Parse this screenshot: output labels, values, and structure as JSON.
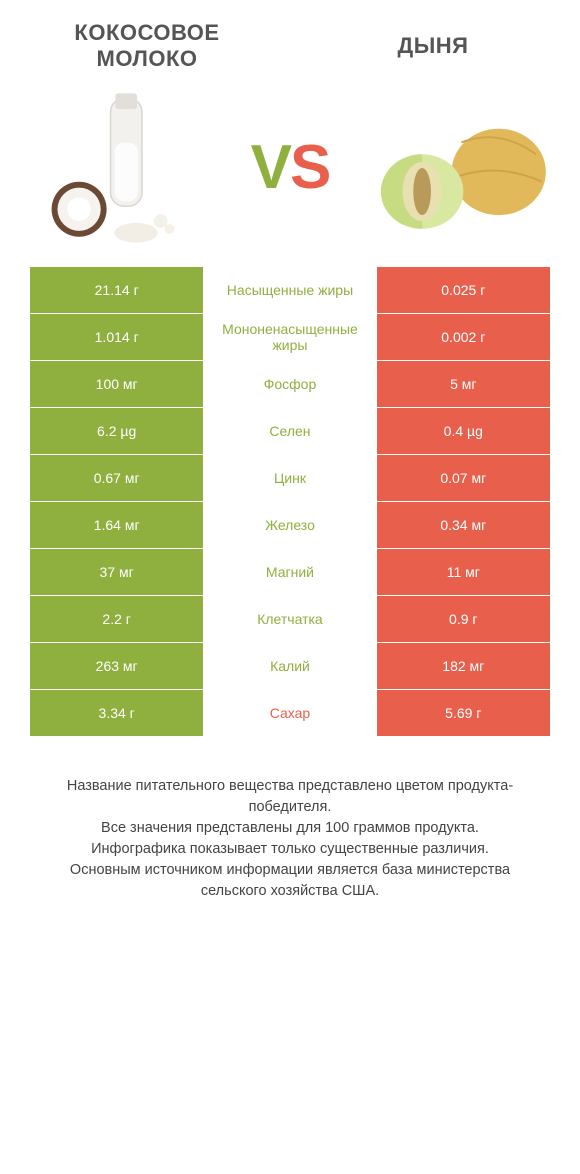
{
  "colors": {
    "green": "#8fb03e",
    "orange": "#e8604c",
    "title": "#555555",
    "footer": "#444444",
    "background": "#ffffff"
  },
  "typography": {
    "title_fontsize": 22,
    "vs_fontsize": 62,
    "cell_fontsize": 14,
    "footer_fontsize": 14.5
  },
  "header": {
    "left_title": "Кокосовое молоко",
    "right_title": "Дыня",
    "vs_v": "V",
    "vs_s": "S"
  },
  "comparison": {
    "type": "table",
    "columns": [
      "left_value",
      "nutrient_label",
      "right_value"
    ],
    "rows": [
      {
        "left": "21.14 г",
        "label": "Насыщенные жиры",
        "right": "0.025 г",
        "winner": "left"
      },
      {
        "left": "1.014 г",
        "label": "Мононенасыщенные жиры",
        "right": "0.002 г",
        "winner": "left"
      },
      {
        "left": "100 мг",
        "label": "Фосфор",
        "right": "5 мг",
        "winner": "left"
      },
      {
        "left": "6.2 µg",
        "label": "Селен",
        "right": "0.4 µg",
        "winner": "left"
      },
      {
        "left": "0.67 мг",
        "label": "Цинк",
        "right": "0.07 мг",
        "winner": "left"
      },
      {
        "left": "1.64 мг",
        "label": "Железо",
        "right": "0.34 мг",
        "winner": "left"
      },
      {
        "left": "37 мг",
        "label": "Магний",
        "right": "11 мг",
        "winner": "left"
      },
      {
        "left": "2.2 г",
        "label": "Клетчатка",
        "right": "0.9 г",
        "winner": "left"
      },
      {
        "left": "263 мг",
        "label": "Калий",
        "right": "182 мг",
        "winner": "left"
      },
      {
        "left": "3.34 г",
        "label": "Сахар",
        "right": "5.69 г",
        "winner": "right"
      }
    ]
  },
  "footer": {
    "line1": "Название питательного вещества представлено цветом продукта-победителя.",
    "line2": "Все значения представлены для 100 граммов продукта.",
    "line3": "Инфографика показывает только существенные различия.",
    "line4": "Основным источником информации является база министерства сельского хозяйства США."
  }
}
